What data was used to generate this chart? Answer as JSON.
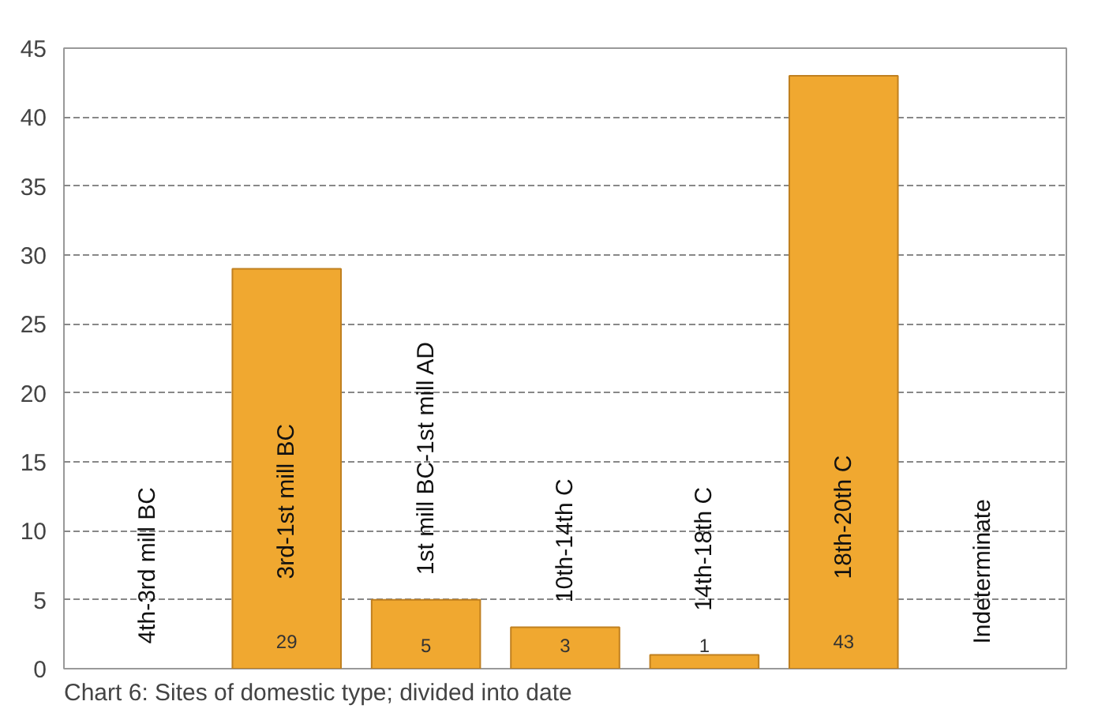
{
  "chart_data": {
    "type": "bar",
    "title": "Chart 6: Sites of domestic type; divided into date",
    "categories": [
      "4th-3rd mill BC",
      "3rd-1st mill BC",
      "1st mill BC-1st mill AD",
      "10th-14th C",
      "14th-18th C",
      "18th-20th C",
      "Indeterminate"
    ],
    "values": [
      null,
      29,
      5,
      3,
      1,
      43,
      null
    ],
    "value_labels": [
      null,
      "29",
      "5",
      "3",
      "1",
      "43",
      null
    ],
    "color": "#f0a830",
    "ylim": [
      0,
      45
    ],
    "yticks": [
      0,
      5,
      10,
      15,
      20,
      25,
      30,
      35,
      40,
      45
    ],
    "grid": "y"
  }
}
